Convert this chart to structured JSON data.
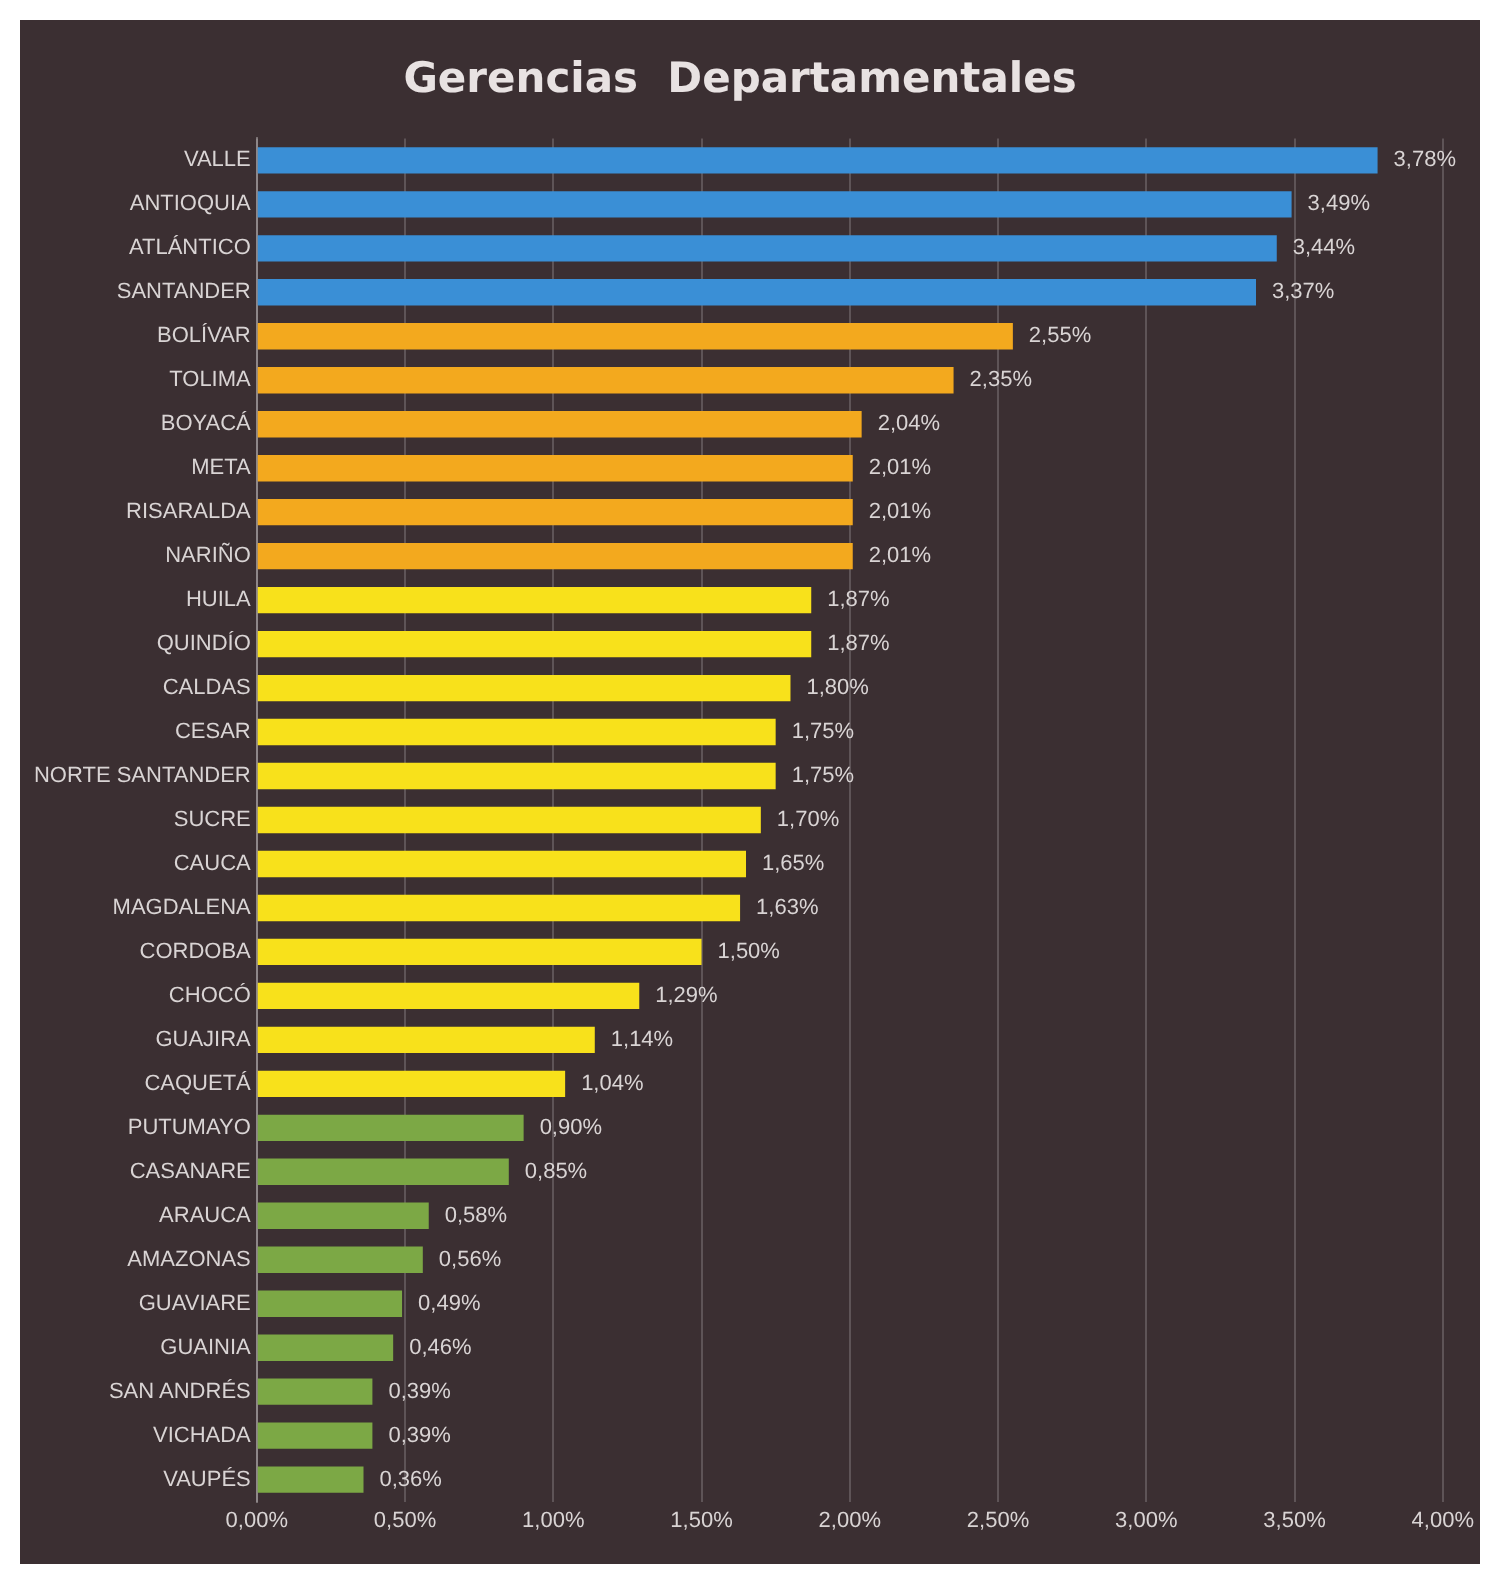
{
  "chart_data": {
    "type": "bar",
    "orientation": "horizontal",
    "title": "Gerencias  Departamentales",
    "categories": [
      "VALLE",
      "ANTIOQUIA",
      "ATLÁNTICO",
      "SANTANDER",
      "BOLÍVAR",
      "TOLIMA",
      "BOYACÁ",
      "META",
      "RISARALDA",
      "NARIÑO",
      "HUILA",
      "QUINDÍO",
      "CALDAS",
      "CESAR",
      "NORTE SANTANDER",
      "SUCRE",
      "CAUCA",
      "MAGDALENA",
      "CORDOBA",
      "CHOCÓ",
      "GUAJIRA",
      "CAQUETÁ",
      "PUTUMAYO",
      "CASANARE",
      "ARAUCA",
      "AMAZONAS",
      "GUAVIARE",
      "GUAINIA",
      "SAN ANDRÉS",
      "VICHADA",
      "VAUPÉS"
    ],
    "values": [
      3.78,
      3.49,
      3.44,
      3.37,
      2.55,
      2.35,
      2.04,
      2.01,
      2.01,
      2.01,
      1.87,
      1.87,
      1.8,
      1.75,
      1.75,
      1.7,
      1.65,
      1.63,
      1.5,
      1.29,
      1.14,
      1.04,
      0.9,
      0.85,
      0.58,
      0.56,
      0.49,
      0.46,
      0.39,
      0.39,
      0.36
    ],
    "value_labels": [
      "3,78%",
      "3,49%",
      "3,44%",
      "3,37%",
      "2,55%",
      "2,35%",
      "2,04%",
      "2,01%",
      "2,01%",
      "2,01%",
      "1,87%",
      "1,87%",
      "1,80%",
      "1,75%",
      "1,75%",
      "1,70%",
      "1,65%",
      "1,63%",
      "1,50%",
      "1,29%",
      "1,14%",
      "1,04%",
      "0,90%",
      "0,85%",
      "0,58%",
      "0,56%",
      "0,49%",
      "0,46%",
      "0,39%",
      "0,39%",
      "0,36%"
    ],
    "colors": [
      "#3a8fd6",
      "#3a8fd6",
      "#3a8fd6",
      "#3a8fd6",
      "#f3a91e",
      "#f3a91e",
      "#f3a91e",
      "#f3a91e",
      "#f3a91e",
      "#f3a91e",
      "#f8e11b",
      "#f8e11b",
      "#f8e11b",
      "#f8e11b",
      "#f8e11b",
      "#f8e11b",
      "#f8e11b",
      "#f8e11b",
      "#f8e11b",
      "#f8e11b",
      "#f8e11b",
      "#f8e11b",
      "#7ca845",
      "#7ca845",
      "#7ca845",
      "#7ca845",
      "#7ca845",
      "#7ca845",
      "#7ca845",
      "#7ca845",
      "#7ca845"
    ],
    "xlim": [
      0,
      4
    ],
    "xticks": [
      {
        "value": 0,
        "label": "0,00%"
      },
      {
        "value": 0.5,
        "label": "0,50%"
      },
      {
        "value": 1,
        "label": "1,00%"
      },
      {
        "value": 1.5,
        "label": "1,50%"
      },
      {
        "value": 2,
        "label": "2,00%"
      },
      {
        "value": 2.5,
        "label": "2,50%"
      },
      {
        "value": 3,
        "label": "3,00%"
      },
      {
        "value": 3.5,
        "label": "3,50%"
      },
      {
        "value": 4,
        "label": "4,00%"
      }
    ],
    "grid": "x",
    "legend": false
  }
}
